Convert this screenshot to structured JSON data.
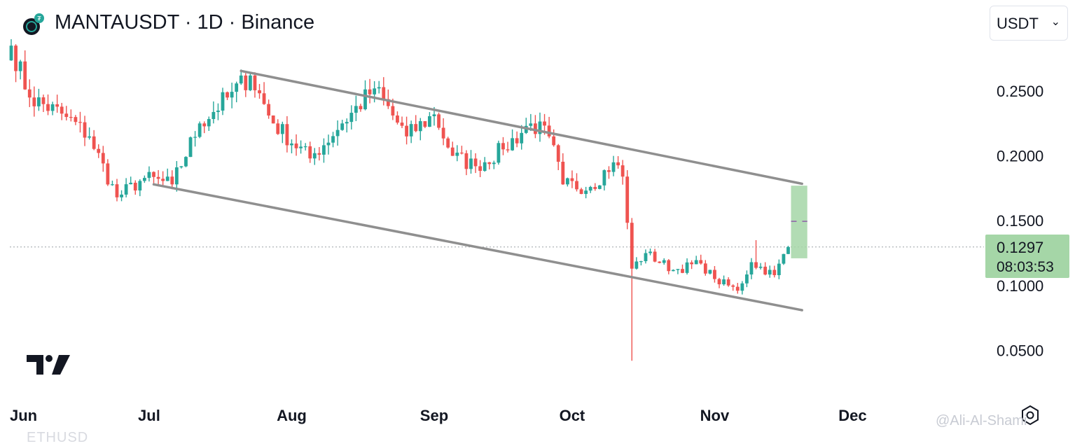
{
  "header": {
    "symbol_title": "MANTAUSDT · 1D · Binance",
    "currency_select": "USDT",
    "currency_chevron": "⌄"
  },
  "price_label": {
    "price": "0.1297",
    "countdown": "08:03:53"
  },
  "watermark": {
    "handle": "@Ali-Al-Shami",
    "bottom_fragment": "ETHUSD"
  },
  "icons": {
    "logo": "manta-coin-icon",
    "brand": "tradingview-logo",
    "settings": "gear-icon"
  },
  "colors": {
    "up": "#26a69a",
    "down": "#ef5350",
    "channel": "#8f8f8f",
    "target_box": "#a5d6a7"
  },
  "chart_data": {
    "type": "candlestick",
    "title": "MANTAUSDT · 1D · Binance",
    "xlabel": "",
    "ylabel": "",
    "y_ticks": [
      "0.2500",
      "0.2000",
      "0.1500",
      "0.1000",
      "0.0500"
    ],
    "y_tick_values": [
      0.25,
      0.2,
      0.15,
      0.1,
      0.05
    ],
    "ylim": [
      0.025,
      0.29
    ],
    "x_ticks": [
      "Jun",
      "Jul",
      "Aug",
      "Sep",
      "Oct",
      "Nov",
      "Dec"
    ],
    "x_tick_dates": [
      "2024-06-01",
      "2024-07-01",
      "2024-08-01",
      "2024-09-01",
      "2024-10-01",
      "2024-11-01",
      "2024-12-01"
    ],
    "grid": false,
    "current_price": 0.1297,
    "anchors": [
      {
        "date": "2024-06-01",
        "price": 0.285
      },
      {
        "date": "2024-06-05",
        "price": 0.245
      },
      {
        "date": "2024-06-13",
        "price": 0.23
      },
      {
        "date": "2024-06-18",
        "price": 0.215
      },
      {
        "date": "2024-06-24",
        "price": 0.168
      },
      {
        "date": "2024-06-30",
        "price": 0.183
      },
      {
        "date": "2024-07-06",
        "price": 0.178
      },
      {
        "date": "2024-07-12",
        "price": 0.225
      },
      {
        "date": "2024-07-18",
        "price": 0.245
      },
      {
        "date": "2024-07-23",
        "price": 0.262
      },
      {
        "date": "2024-07-28",
        "price": 0.225
      },
      {
        "date": "2024-08-05",
        "price": 0.198
      },
      {
        "date": "2024-08-12",
        "price": 0.225
      },
      {
        "date": "2024-08-19",
        "price": 0.252
      },
      {
        "date": "2024-08-26",
        "price": 0.215
      },
      {
        "date": "2024-09-01",
        "price": 0.232
      },
      {
        "date": "2024-09-05",
        "price": 0.2
      },
      {
        "date": "2024-09-10",
        "price": 0.192
      },
      {
        "date": "2024-09-16",
        "price": 0.205
      },
      {
        "date": "2024-09-22",
        "price": 0.225
      },
      {
        "date": "2024-09-26",
        "price": 0.215
      },
      {
        "date": "2024-09-29",
        "price": 0.178
      },
      {
        "date": "2024-10-05",
        "price": 0.176
      },
      {
        "date": "2024-10-10",
        "price": 0.195
      },
      {
        "date": "2024-10-12",
        "price": 0.184
      },
      {
        "date": "2024-10-14",
        "price": 0.113
      },
      {
        "date": "2024-10-17",
        "price": 0.125
      },
      {
        "date": "2024-10-23",
        "price": 0.112
      },
      {
        "date": "2024-10-29",
        "price": 0.117
      },
      {
        "date": "2024-11-01",
        "price": 0.105
      },
      {
        "date": "2024-11-06",
        "price": 0.096
      },
      {
        "date": "2024-11-09",
        "price": 0.118
      },
      {
        "date": "2024-11-14",
        "price": 0.108
      },
      {
        "date": "2024-11-17",
        "price": 0.1297
      }
    ],
    "notable_wicks": [
      {
        "date": "2024-10-14",
        "low": 0.042
      },
      {
        "date": "2024-11-10",
        "high": 0.135
      }
    ],
    "channel_upper": {
      "start": {
        "date": "2024-07-21",
        "price": 0.2655
      },
      "end": {
        "date": "2024-11-20",
        "price": 0.1785
      }
    },
    "channel_lower": {
      "start": {
        "date": "2024-07-02",
        "price": 0.178
      },
      "end": {
        "date": "2024-11-20",
        "price": 0.081
      }
    },
    "target_zone": {
      "start_date": "2024-11-17",
      "end_date": "2024-11-21",
      "low": 0.121,
      "high": 0.177,
      "mid": 0.1495
    }
  }
}
